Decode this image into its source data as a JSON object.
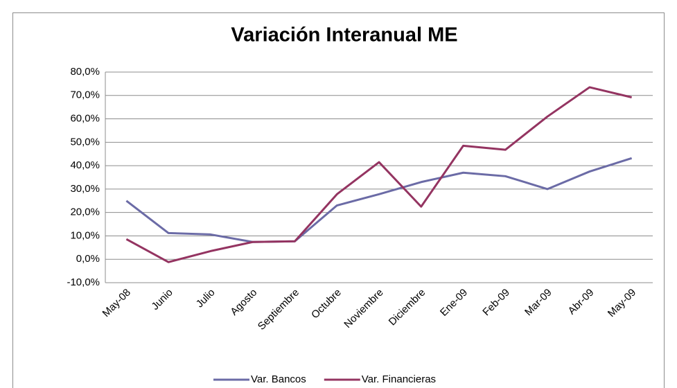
{
  "chart_data": {
    "type": "line",
    "title": "Variación Interanual ME",
    "categories": [
      "May-08",
      "Junio",
      "Julio",
      "Agosto",
      "Septiembre",
      "Octubre",
      "Noviembre",
      "Diciembre",
      "Ene-09",
      "Feb-09",
      "Mar-09",
      "Abr-09",
      "May-09"
    ],
    "series": [
      {
        "name": "Var. Bancos",
        "color": "#6b6ba6",
        "values": [
          25,
          11.2,
          10.6,
          7.4,
          7.7,
          23,
          27.8,
          33,
          37,
          35.5,
          30,
          37.5,
          43.2
        ]
      },
      {
        "name": "Var. Financieras",
        "color": "#943461",
        "values": [
          8.6,
          -1.2,
          3.5,
          7.4,
          7.7,
          27.8,
          41.5,
          22.5,
          48.5,
          46.8,
          61,
          73.5,
          69.2
        ]
      }
    ],
    "ylim": [
      -10,
      80
    ],
    "yticks": [
      {
        "value": -10,
        "label": "-10,0%"
      },
      {
        "value": 0,
        "label": "0,0%"
      },
      {
        "value": 10,
        "label": "10,0%"
      },
      {
        "value": 20,
        "label": "20,0%"
      },
      {
        "value": 30,
        "label": "30,0%"
      },
      {
        "value": 40,
        "label": "40,0%"
      },
      {
        "value": 50,
        "label": "50,0%"
      },
      {
        "value": 60,
        "label": "60,0%"
      },
      {
        "value": 70,
        "label": "70,0%"
      },
      {
        "value": 80,
        "label": "80,0%"
      }
    ],
    "grid": true,
    "legend": "bottom"
  }
}
